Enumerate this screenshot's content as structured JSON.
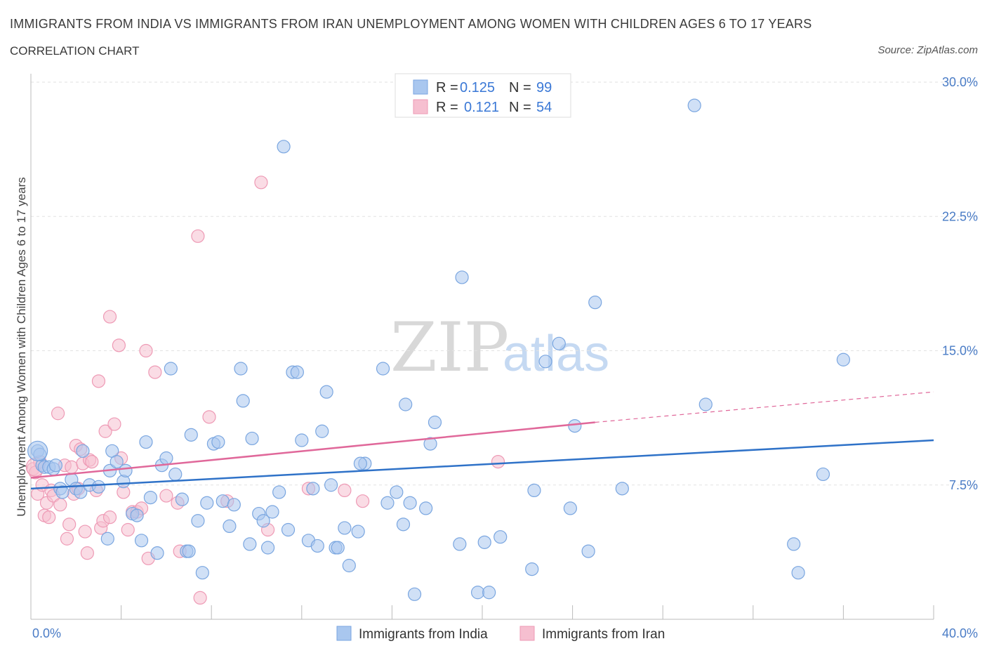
{
  "header": {
    "title": "IMMIGRANTS FROM INDIA VS IMMIGRANTS FROM IRAN UNEMPLOYMENT AMONG WOMEN WITH CHILDREN AGES 6 TO 17 YEARS",
    "subtitle": "CORRELATION CHART",
    "source": "Source: ZipAtlas.com"
  },
  "watermark": {
    "zip": "ZIP",
    "atlas": "atlas"
  },
  "legend": {
    "r_label": "R =",
    "n_label": "N =",
    "india": {
      "r": "0.125",
      "n": "99"
    },
    "iran": {
      "r": "0.121",
      "n": "54"
    }
  },
  "colors": {
    "india_fill": "#a9c7ef",
    "india_stroke": "#7aa6e0",
    "india_line": "#2f72c8",
    "iran_fill": "#f6bfd0",
    "iran_stroke": "#ee9ab5",
    "iran_line": "#e0689a",
    "grid": "#e2e2e2",
    "tick_text": "#4a7cc6"
  },
  "chart_data": {
    "type": "scatter",
    "title": "IMMIGRANTS FROM INDIA VS IMMIGRANTS FROM IRAN UNEMPLOYMENT AMONG WOMEN WITH CHILDREN AGES 6 TO 17 YEARS",
    "xlabel": "",
    "ylabel": "Unemployment Among Women with Children Ages 6 to 17 years",
    "xlim": [
      0,
      40
    ],
    "ylim": [
      0,
      30
    ],
    "x_tick_labels": [
      "0.0%",
      "40.0%"
    ],
    "y_tick_values": [
      7.5,
      15.0,
      22.5,
      30.0
    ],
    "y_tick_labels": [
      "7.5%",
      "15.0%",
      "22.5%",
      "30.0%"
    ],
    "grid": "horizontal dashed",
    "legend_position": "top-center",
    "series": [
      {
        "name": "Immigrants from India",
        "trend": {
          "x": [
            0,
            40
          ],
          "y": [
            7.3,
            10.0
          ]
        },
        "points": [
          [
            0.3,
            9.4
          ],
          [
            0.5,
            8.6
          ],
          [
            0.6,
            8.5
          ],
          [
            0.8,
            8.5
          ],
          [
            1.0,
            8.4
          ],
          [
            1.3,
            7.3
          ],
          [
            1.4,
            7.1
          ],
          [
            1.8,
            7.8
          ],
          [
            2.0,
            7.3
          ],
          [
            2.2,
            7.1
          ],
          [
            2.3,
            9.4
          ],
          [
            2.6,
            7.5
          ],
          [
            3.0,
            7.4
          ],
          [
            3.4,
            4.5
          ],
          [
            3.5,
            8.3
          ],
          [
            3.6,
            9.4
          ],
          [
            3.8,
            8.8
          ],
          [
            4.1,
            7.7
          ],
          [
            4.2,
            8.3
          ],
          [
            4.5,
            5.9
          ],
          [
            4.7,
            5.8
          ],
          [
            4.9,
            4.4
          ],
          [
            5.1,
            9.9
          ],
          [
            5.3,
            6.8
          ],
          [
            5.6,
            3.7
          ],
          [
            5.8,
            8.6
          ],
          [
            6.0,
            9.0
          ],
          [
            6.2,
            14.0
          ],
          [
            6.4,
            8.1
          ],
          [
            6.7,
            6.7
          ],
          [
            6.9,
            3.8
          ],
          [
            7.0,
            3.8
          ],
          [
            7.1,
            10.3
          ],
          [
            7.4,
            5.5
          ],
          [
            7.6,
            2.6
          ],
          [
            7.8,
            6.5
          ],
          [
            8.1,
            9.8
          ],
          [
            8.3,
            9.9
          ],
          [
            8.5,
            6.6
          ],
          [
            8.8,
            5.2
          ],
          [
            9.0,
            6.4
          ],
          [
            9.3,
            14.0
          ],
          [
            9.4,
            12.2
          ],
          [
            9.7,
            4.2
          ],
          [
            9.8,
            10.1
          ],
          [
            10.1,
            5.9
          ],
          [
            10.3,
            5.5
          ],
          [
            10.5,
            4.0
          ],
          [
            10.7,
            6.0
          ],
          [
            11.0,
            7.1
          ],
          [
            11.2,
            26.4
          ],
          [
            11.4,
            5.0
          ],
          [
            11.6,
            13.8
          ],
          [
            11.8,
            13.8
          ],
          [
            12.0,
            10.0
          ],
          [
            12.3,
            4.4
          ],
          [
            12.5,
            7.3
          ],
          [
            12.7,
            4.1
          ],
          [
            12.9,
            10.5
          ],
          [
            13.1,
            12.7
          ],
          [
            13.3,
            7.5
          ],
          [
            13.5,
            4.0
          ],
          [
            13.6,
            4.0
          ],
          [
            13.9,
            5.1
          ],
          [
            14.1,
            3.0
          ],
          [
            14.5,
            4.9
          ],
          [
            14.8,
            8.7
          ],
          [
            15.6,
            14.0
          ],
          [
            15.8,
            6.5
          ],
          [
            16.2,
            7.1
          ],
          [
            16.5,
            5.3
          ],
          [
            16.6,
            12.0
          ],
          [
            17.0,
            1.4
          ],
          [
            17.5,
            6.2
          ],
          [
            17.7,
            9.8
          ],
          [
            17.9,
            11.0
          ],
          [
            19.1,
            19.1
          ],
          [
            19.0,
            4.2
          ],
          [
            19.8,
            1.5
          ],
          [
            20.1,
            4.3
          ],
          [
            20.3,
            1.5
          ],
          [
            20.8,
            4.6
          ],
          [
            22.2,
            2.8
          ],
          [
            22.3,
            7.2
          ],
          [
            22.8,
            14.4
          ],
          [
            23.4,
            15.4
          ],
          [
            23.9,
            6.2
          ],
          [
            24.1,
            10.8
          ],
          [
            24.7,
            3.8
          ],
          [
            25.0,
            17.7
          ],
          [
            26.2,
            7.3
          ],
          [
            29.4,
            28.7
          ],
          [
            29.9,
            12.0
          ],
          [
            33.8,
            4.2
          ],
          [
            34.0,
            2.6
          ],
          [
            35.1,
            8.1
          ],
          [
            36.0,
            14.5
          ],
          [
            0.4,
            9.2
          ],
          [
            1.1,
            8.6
          ]
        ]
      },
      {
        "name": "Immigrants from Iran",
        "trend": {
          "x": [
            0,
            25
          ],
          "y": [
            7.9,
            11.0
          ]
        },
        "trend_extension": {
          "x": [
            25,
            40
          ],
          "y": [
            11.0,
            12.7
          ]
        },
        "points": [
          [
            0.1,
            8.4
          ],
          [
            0.2,
            8.2
          ],
          [
            0.3,
            7.0
          ],
          [
            0.4,
            8.8
          ],
          [
            0.5,
            7.5
          ],
          [
            0.6,
            5.8
          ],
          [
            0.7,
            6.5
          ],
          [
            0.8,
            5.7
          ],
          [
            0.9,
            7.2
          ],
          [
            1.0,
            6.9
          ],
          [
            1.2,
            11.5
          ],
          [
            1.3,
            6.4
          ],
          [
            1.5,
            8.6
          ],
          [
            1.6,
            4.5
          ],
          [
            1.7,
            5.3
          ],
          [
            1.8,
            8.5
          ],
          [
            1.9,
            7.0
          ],
          [
            2.0,
            9.7
          ],
          [
            2.1,
            7.3
          ],
          [
            2.2,
            9.5
          ],
          [
            2.3,
            8.7
          ],
          [
            2.4,
            4.9
          ],
          [
            2.5,
            3.7
          ],
          [
            2.6,
            8.9
          ],
          [
            2.7,
            8.8
          ],
          [
            2.9,
            7.2
          ],
          [
            3.0,
            13.3
          ],
          [
            3.1,
            5.1
          ],
          [
            3.2,
            5.5
          ],
          [
            3.3,
            10.5
          ],
          [
            3.5,
            5.7
          ],
          [
            3.5,
            16.9
          ],
          [
            3.7,
            10.9
          ],
          [
            3.9,
            15.3
          ],
          [
            4.0,
            9.0
          ],
          [
            4.1,
            7.1
          ],
          [
            4.3,
            5.0
          ],
          [
            4.5,
            6.0
          ],
          [
            4.7,
            6.0
          ],
          [
            4.9,
            6.2
          ],
          [
            5.1,
            15.0
          ],
          [
            5.2,
            3.4
          ],
          [
            5.5,
            13.8
          ],
          [
            6.0,
            6.9
          ],
          [
            6.5,
            6.5
          ],
          [
            6.6,
            3.8
          ],
          [
            7.4,
            21.4
          ],
          [
            7.5,
            1.2
          ],
          [
            7.9,
            11.3
          ],
          [
            8.7,
            6.6
          ],
          [
            10.2,
            24.4
          ],
          [
            10.5,
            5.0
          ],
          [
            12.3,
            7.3
          ],
          [
            13.9,
            7.2
          ]
        ]
      }
    ],
    "extra_india_points": [
      [
        16.8,
        6.5
      ],
      [
        14.6,
        8.7
      ]
    ],
    "extra_iran_points": [
      [
        14.7,
        6.6
      ],
      [
        20.7,
        8.8
      ]
    ]
  },
  "bottom_legend": {
    "india": "Immigrants from India",
    "iran": "Immigrants from Iran"
  }
}
